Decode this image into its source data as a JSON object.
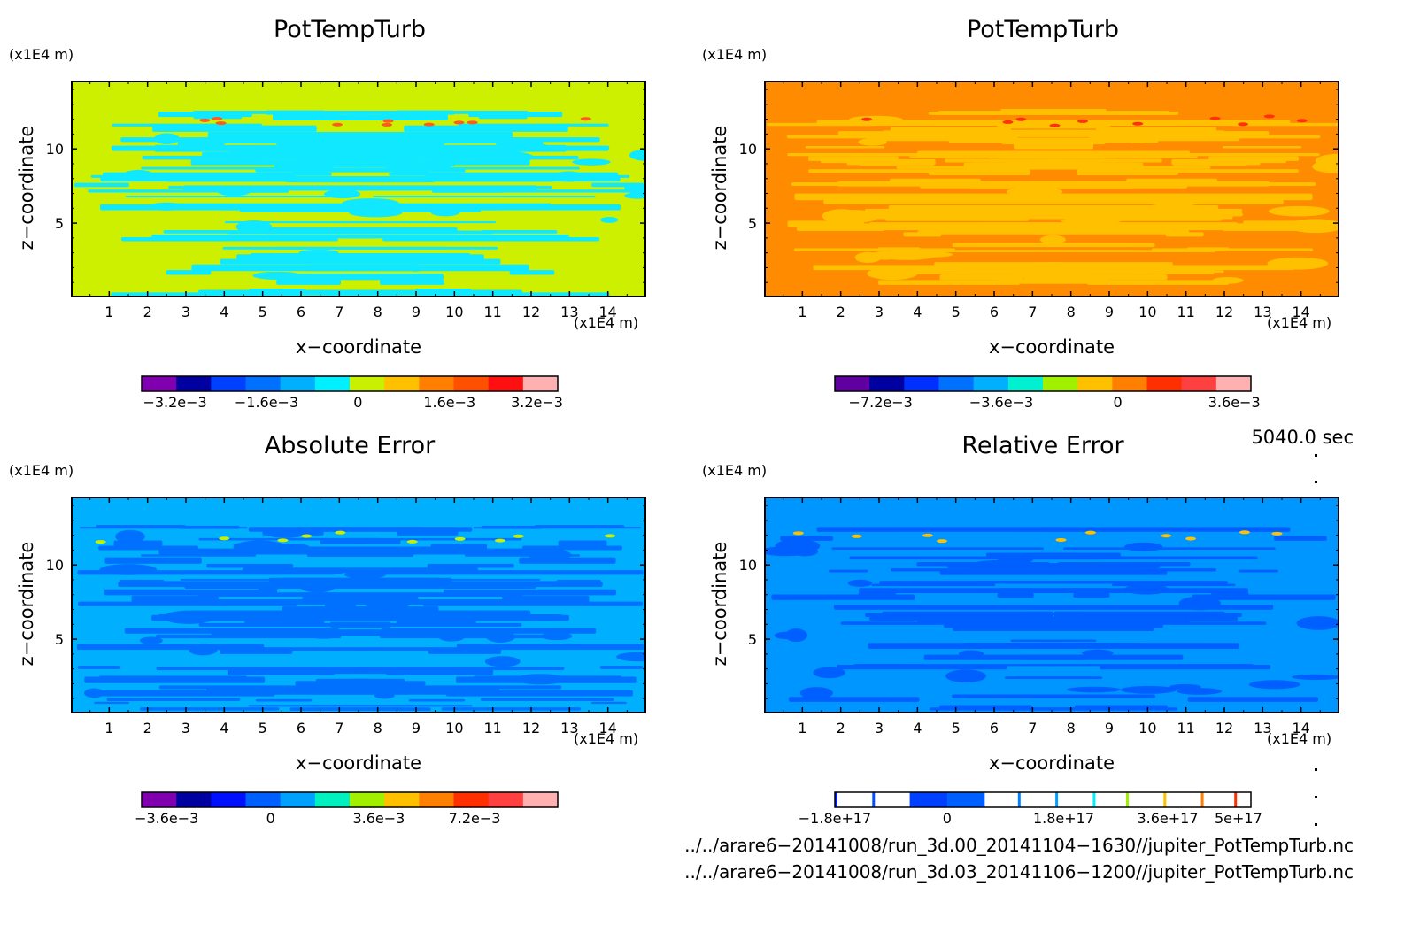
{
  "panels": [
    {
      "title": "PotTempTurb",
      "y_unit": "(x1E4 m)",
      "x_unit": "(x1E4 m)",
      "xlabel": "x−coordinate",
      "ylabel": "z−coordinate",
      "background": "#ccf000",
      "pattern": "#10e8ff",
      "accent": "#ff5a20",
      "cbar_colors": [
        "#8000b0",
        "#0000a0",
        "#0040ff",
        "#0070ff",
        "#00b0ff",
        "#00f0ff",
        "#c8f000",
        "#ffc000",
        "#ff8000",
        "#ff5000",
        "#ff1010",
        "#ffb0b0"
      ],
      "cbar_labels": [
        "−3.2e−3",
        "−1.6e−3",
        "0",
        "1.6e−3",
        "3.2e−3"
      ],
      "cbar_label_pos": [
        0.08,
        0.3,
        0.52,
        0.74,
        0.95
      ],
      "cbar_style": "fill"
    },
    {
      "title": "PotTempTurb",
      "y_unit": "(x1E4 m)",
      "x_unit": "(x1E4 m)",
      "xlabel": "x−coordinate",
      "ylabel": "z−coordinate",
      "background": "#ff8c00",
      "pattern": "#ffc000",
      "accent": "#ff3010",
      "cbar_colors": [
        "#6000a0",
        "#0000a0",
        "#0030ff",
        "#0070ff",
        "#00b0ff",
        "#00f0d0",
        "#a0f000",
        "#ffc000",
        "#ff8000",
        "#ff3000",
        "#ff4040",
        "#ffb0b0"
      ],
      "cbar_labels": [
        "−7.2e−3",
        "−3.6e−3",
        "0",
        "3.6e−3"
      ],
      "cbar_label_pos": [
        0.11,
        0.4,
        0.68,
        0.96
      ],
      "cbar_style": "fill"
    },
    {
      "title": "Absolute Error",
      "y_unit": "(x1E4 m)",
      "x_unit": "(x1E4 m)",
      "xlabel": "x−coordinate",
      "ylabel": "z−coordinate",
      "background": "#00b0ff",
      "pattern": "#0070ff",
      "accent": "#c8f000",
      "cbar_colors": [
        "#8000b0",
        "#0000a0",
        "#0010ff",
        "#0060ff",
        "#00a0ff",
        "#00f0c0",
        "#a0f000",
        "#ffc000",
        "#ff8000",
        "#ff3000",
        "#ff4040",
        "#ffb0b0"
      ],
      "cbar_labels": [
        "−3.6e−3",
        "0",
        "3.6e−3",
        "7.2e−3"
      ],
      "cbar_label_pos": [
        0.06,
        0.31,
        0.57,
        0.8
      ],
      "cbar_style": "fill"
    },
    {
      "title": "Relative Error",
      "y_unit": "(x1E4 m)",
      "x_unit": "(x1E4 m)",
      "xlabel": "x−coordinate",
      "ylabel": "z−coordinate",
      "background": "#0096ff",
      "pattern": "#0060ff",
      "accent": "#ffc000",
      "cbar_colors": [
        "#0000a0",
        "#0020ff",
        "#0050ff",
        "#0080ff",
        "#00a0ff",
        "#00f0ff",
        "#a0f000",
        "#ffc000",
        "#ff8000",
        "#ff3000",
        "#ff1010",
        "#ff0000"
      ],
      "cbar_labels": [
        "−1.8e+17",
        "0",
        "1.8e+17",
        "3.6e+17",
        "5e+17"
      ],
      "cbar_label_pos": [
        0.0,
        0.27,
        0.55,
        0.8,
        0.97
      ],
      "cbar_style": "lines"
    }
  ],
  "x_tick_labels": [
    "1",
    "2",
    "3",
    "4",
    "5",
    "6",
    "7",
    "8",
    "9",
    "10",
    "11",
    "12",
    "13",
    "14"
  ],
  "y_tick_labels": [
    "5",
    "10"
  ],
  "timestamp": "5040.0 sec",
  "footer": [
    "../../arare6−20141008/run_3d.00_20141104−1630//jupiter_PotTempTurb.nc",
    "../../arare6−20141008/run_3d.03_20141106−1200//jupiter_PotTempTurb.nc"
  ],
  "chart_data": [
    {
      "type": "heatmap",
      "title": "PotTempTurb",
      "xlabel": "x−coordinate",
      "ylabel": "z−coordinate",
      "xunit": "(x1E4 m)",
      "yunit": "(x1E4 m)",
      "xlim": [
        0,
        15
      ],
      "ylim": [
        0,
        14.6
      ],
      "colorbar_ticks": [
        -0.0032,
        -0.0016,
        0,
        0.0016,
        0.0032
      ]
    },
    {
      "type": "heatmap",
      "title": "PotTempTurb",
      "xlabel": "x−coordinate",
      "ylabel": "z−coordinate",
      "xunit": "(x1E4 m)",
      "yunit": "(x1E4 m)",
      "xlim": [
        0,
        15
      ],
      "ylim": [
        0,
        14.6
      ],
      "colorbar_ticks": [
        -0.0072,
        -0.0036,
        0,
        0.0036
      ]
    },
    {
      "type": "heatmap",
      "title": "Absolute Error",
      "xlabel": "x−coordinate",
      "ylabel": "z−coordinate",
      "xunit": "(x1E4 m)",
      "yunit": "(x1E4 m)",
      "xlim": [
        0,
        15
      ],
      "ylim": [
        0,
        14.6
      ],
      "colorbar_ticks": [
        -0.0036,
        0,
        0.0036,
        0.0072
      ]
    },
    {
      "type": "heatmap",
      "title": "Relative Error",
      "xlabel": "x−coordinate",
      "ylabel": "z−coordinate",
      "xunit": "(x1E4 m)",
      "yunit": "(x1E4 m)",
      "xlim": [
        0,
        15
      ],
      "ylim": [
        0,
        14.6
      ],
      "colorbar_ticks": [
        -1.8e+17,
        0,
        1.8e+17,
        3.6e+17,
        5e+17
      ]
    }
  ]
}
